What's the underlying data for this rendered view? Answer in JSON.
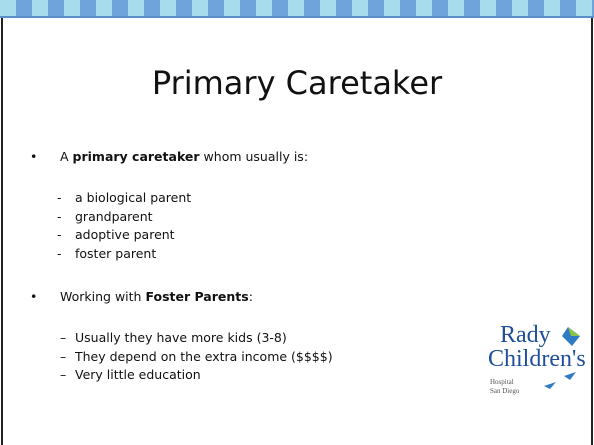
{
  "title": "Primary Caretaker",
  "bullets": [
    {
      "marker": "•",
      "lead": "A ",
      "bold": "primary caretaker",
      "tail": " whom usually is:",
      "subitems": [
        {
          "marker": "-",
          "text": "a biological parent"
        },
        {
          "marker": "-",
          "text": "grandparent"
        },
        {
          "marker": "-",
          "text": "adoptive parent"
        },
        {
          "marker": "-",
          "text": "foster parent"
        }
      ]
    },
    {
      "marker": "•",
      "lead": "Working with ",
      "bold": "Foster Parents",
      "tail": ":",
      "subitems": [
        {
          "marker": "–",
          "text": "Usually they have more kids (3-8)"
        },
        {
          "marker": "–",
          "text": "They depend on the extra income ($$$$)"
        },
        {
          "marker": "–",
          "text": "Very little education"
        }
      ]
    }
  ],
  "logo": {
    "name": "Rady",
    "subtitle": "Children's",
    "line1": "Hospital",
    "line2": "San Diego"
  }
}
